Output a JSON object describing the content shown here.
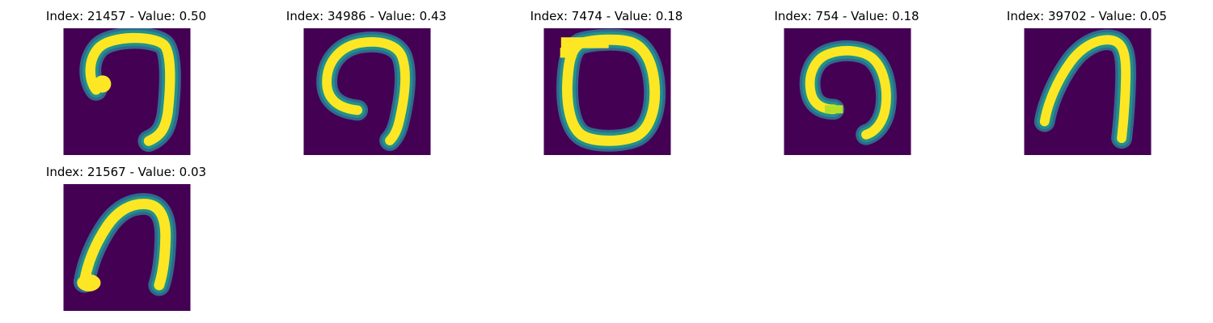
{
  "colors": {
    "background": "#440154",
    "stroke_mid": "#21918c",
    "stroke_edge": "#31688e",
    "stroke_high": "#fde725",
    "stroke_high_2": "#b5de2b"
  },
  "panels": [
    {
      "title": "Index: 21457 - Value: 0.50"
    },
    {
      "title": "Index: 34986 - Value: 0.43"
    },
    {
      "title": "Index: 7474 - Value: 0.18"
    },
    {
      "title": "Index: 754 - Value: 0.18"
    },
    {
      "title": "Index: 39702 - Value: 0.05"
    },
    {
      "title": "Index: 21567 - Value: 0.03"
    }
  ]
}
